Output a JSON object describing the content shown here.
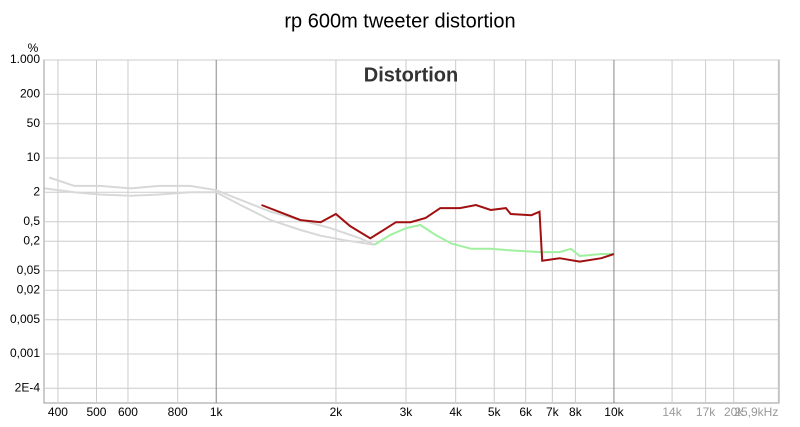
{
  "chart_data": {
    "type": "line",
    "title": "rp 600m tweeter distortion",
    "annotation": "Distortion",
    "y_unit": "%",
    "log_x": true,
    "log_y": true,
    "grid": true,
    "xlim": [
      369,
      26000
    ],
    "ylim": [
      0.0001,
      1000
    ],
    "xticks": [
      400,
      500,
      600,
      800,
      {
        "value": 1000,
        "label": "1k"
      },
      {
        "value": 2000,
        "label": "2k"
      },
      {
        "value": 3000,
        "label": "3k"
      },
      {
        "value": 4000,
        "label": "4k"
      },
      {
        "value": 5000,
        "label": "5k"
      },
      {
        "value": 6000,
        "label": "6k"
      },
      {
        "value": 7000,
        "label": "7k"
      },
      {
        "value": 8000,
        "label": "8k"
      },
      {
        "value": 10000,
        "label": "10k"
      },
      {
        "value": 14000,
        "label": "14k"
      },
      {
        "value": 17000,
        "label": "17k"
      },
      {
        "value": 20000,
        "label": "20k"
      },
      {
        "value": 25900,
        "label": "25,9kHz"
      }
    ],
    "yticks": [
      {
        "value": 1000,
        "label": "1.000"
      },
      200,
      50,
      10,
      2,
      {
        "value": 0.5,
        "label": "0,5"
      },
      {
        "value": 0.2,
        "label": "0,2"
      },
      {
        "value": 0.05,
        "label": "0,05"
      },
      {
        "value": 0.02,
        "label": "0,02"
      },
      {
        "value": 0.005,
        "label": "0,005"
      },
      {
        "value": 0.001,
        "label": "0,001"
      },
      {
        "value": 0.0002,
        "label": "2E-4"
      }
    ],
    "series": [
      {
        "color": "#d8d8d8",
        "x": [
          380,
          440,
          510,
          610,
          720,
          860,
          1000,
          1150,
          1370,
          1630,
          1940,
          2300,
          2500
        ],
        "values": [
          4,
          2.7,
          2.7,
          2.4,
          2.7,
          2.7,
          2.2,
          1.4,
          0.8,
          0.54,
          0.37,
          0.23,
          0.17
        ]
      },
      {
        "color": "#d8d8d8",
        "x": [
          370,
          440,
          510,
          610,
          720,
          860,
          1000,
          1150,
          1370,
          1630,
          1830,
          2100,
          2500
        ],
        "values": [
          2.4,
          2,
          1.8,
          1.7,
          1.8,
          2,
          2,
          1.1,
          0.54,
          0.34,
          0.26,
          0.21,
          0.17
        ]
      },
      {
        "color": "#a0f0a0",
        "x": [
          2500,
          2740,
          3000,
          3260,
          3560,
          3900,
          4370,
          4900,
          5500,
          6500,
          7300,
          7800,
          8200,
          9300,
          10000
        ],
        "values": [
          0.17,
          0.27,
          0.37,
          0.43,
          0.27,
          0.18,
          0.14,
          0.14,
          0.13,
          0.12,
          0.12,
          0.14,
          0.1,
          0.11,
          0.11
        ]
      },
      {
        "color": "#a01010",
        "x": [
          1300,
          1630,
          1830,
          2000,
          2170,
          2440,
          2590,
          2830,
          3080,
          3360,
          3660,
          4100,
          4500,
          4900,
          5350,
          5500,
          6200,
          6500,
          6600,
          7300,
          8200,
          9300,
          10000
        ],
        "values": [
          1.1,
          0.54,
          0.49,
          0.72,
          0.41,
          0.23,
          0.31,
          0.49,
          0.49,
          0.6,
          0.95,
          0.95,
          1.1,
          0.87,
          0.95,
          0.72,
          0.68,
          0.8,
          0.08,
          0.09,
          0.077,
          0.09,
          0.11
        ]
      }
    ]
  }
}
